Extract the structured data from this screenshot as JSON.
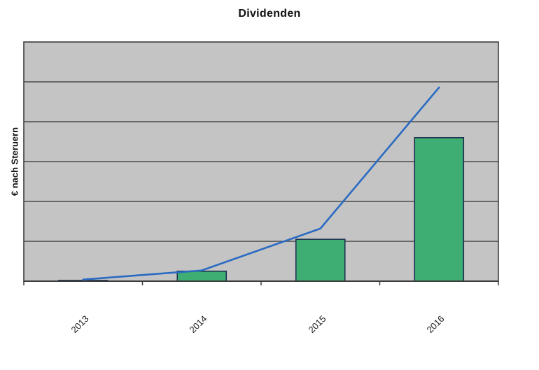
{
  "chart": {
    "title": "Dividenden",
    "y_axis_label": "€ nach Steruern"
  },
  "chart_data": {
    "type": "combo_bar_line",
    "title": "Dividenden",
    "categories": [
      "2013",
      "2014",
      "2015",
      "2016"
    ],
    "series": [
      {
        "type": "bar",
        "values": [
          0.02,
          0.25,
          1.05,
          3.6
        ]
      },
      {
        "type": "line",
        "values": [
          0.04,
          0.27,
          1.32,
          4.86
        ]
      }
    ],
    "xlabel": "",
    "ylabel": "€ nach Steruern",
    "ylim": [
      0,
      6
    ],
    "value_unit": "gridline intervals (y axis has no numeric tick labels)",
    "gridlines": "horizontal, 1 per unit",
    "legend": "none",
    "x_tick_label_rotation_deg": 45,
    "colors": {
      "bar_fill": "#3eae73",
      "bar_border": "#1c3150",
      "line": "#2a6bc2",
      "plot_background": "#c4c4c4",
      "gridline": "#4a4a4a",
      "axis_border": "#3d3d3d",
      "title_text": "#111111"
    }
  }
}
